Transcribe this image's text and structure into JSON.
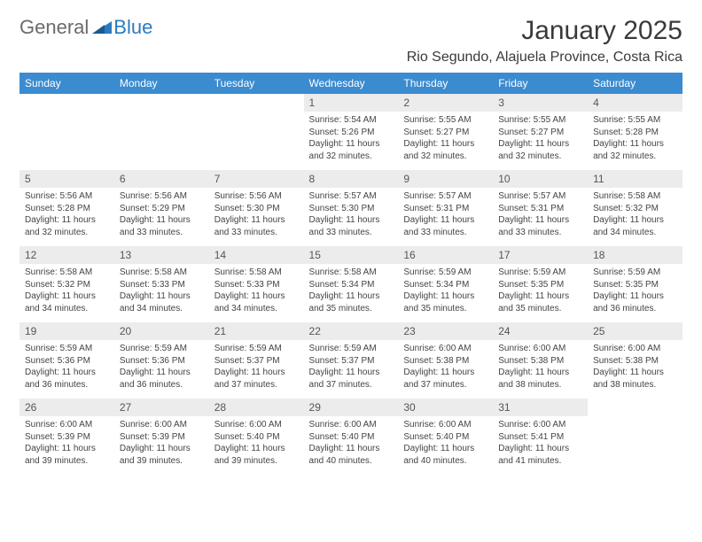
{
  "logo": {
    "text_general": "General",
    "text_blue": "Blue"
  },
  "header": {
    "month_title": "January 2025",
    "location": "Rio Segundo, Alajuela Province, Costa Rica"
  },
  "calendar": {
    "day_headers": [
      "Sunday",
      "Monday",
      "Tuesday",
      "Wednesday",
      "Thursday",
      "Friday",
      "Saturday"
    ],
    "header_bg": "#3b8bd0",
    "header_fg": "#ffffff",
    "daynum_bg": "#ececec",
    "body_text_color": "#444444",
    "weeks": [
      [
        null,
        null,
        null,
        {
          "n": "1",
          "sr": "Sunrise: 5:54 AM",
          "ss": "Sunset: 5:26 PM",
          "dl": "Daylight: 11 hours and 32 minutes."
        },
        {
          "n": "2",
          "sr": "Sunrise: 5:55 AM",
          "ss": "Sunset: 5:27 PM",
          "dl": "Daylight: 11 hours and 32 minutes."
        },
        {
          "n": "3",
          "sr": "Sunrise: 5:55 AM",
          "ss": "Sunset: 5:27 PM",
          "dl": "Daylight: 11 hours and 32 minutes."
        },
        {
          "n": "4",
          "sr": "Sunrise: 5:55 AM",
          "ss": "Sunset: 5:28 PM",
          "dl": "Daylight: 11 hours and 32 minutes."
        }
      ],
      [
        {
          "n": "5",
          "sr": "Sunrise: 5:56 AM",
          "ss": "Sunset: 5:28 PM",
          "dl": "Daylight: 11 hours and 32 minutes."
        },
        {
          "n": "6",
          "sr": "Sunrise: 5:56 AM",
          "ss": "Sunset: 5:29 PM",
          "dl": "Daylight: 11 hours and 33 minutes."
        },
        {
          "n": "7",
          "sr": "Sunrise: 5:56 AM",
          "ss": "Sunset: 5:30 PM",
          "dl": "Daylight: 11 hours and 33 minutes."
        },
        {
          "n": "8",
          "sr": "Sunrise: 5:57 AM",
          "ss": "Sunset: 5:30 PM",
          "dl": "Daylight: 11 hours and 33 minutes."
        },
        {
          "n": "9",
          "sr": "Sunrise: 5:57 AM",
          "ss": "Sunset: 5:31 PM",
          "dl": "Daylight: 11 hours and 33 minutes."
        },
        {
          "n": "10",
          "sr": "Sunrise: 5:57 AM",
          "ss": "Sunset: 5:31 PM",
          "dl": "Daylight: 11 hours and 33 minutes."
        },
        {
          "n": "11",
          "sr": "Sunrise: 5:58 AM",
          "ss": "Sunset: 5:32 PM",
          "dl": "Daylight: 11 hours and 34 minutes."
        }
      ],
      [
        {
          "n": "12",
          "sr": "Sunrise: 5:58 AM",
          "ss": "Sunset: 5:32 PM",
          "dl": "Daylight: 11 hours and 34 minutes."
        },
        {
          "n": "13",
          "sr": "Sunrise: 5:58 AM",
          "ss": "Sunset: 5:33 PM",
          "dl": "Daylight: 11 hours and 34 minutes."
        },
        {
          "n": "14",
          "sr": "Sunrise: 5:58 AM",
          "ss": "Sunset: 5:33 PM",
          "dl": "Daylight: 11 hours and 34 minutes."
        },
        {
          "n": "15",
          "sr": "Sunrise: 5:58 AM",
          "ss": "Sunset: 5:34 PM",
          "dl": "Daylight: 11 hours and 35 minutes."
        },
        {
          "n": "16",
          "sr": "Sunrise: 5:59 AM",
          "ss": "Sunset: 5:34 PM",
          "dl": "Daylight: 11 hours and 35 minutes."
        },
        {
          "n": "17",
          "sr": "Sunrise: 5:59 AM",
          "ss": "Sunset: 5:35 PM",
          "dl": "Daylight: 11 hours and 35 minutes."
        },
        {
          "n": "18",
          "sr": "Sunrise: 5:59 AM",
          "ss": "Sunset: 5:35 PM",
          "dl": "Daylight: 11 hours and 36 minutes."
        }
      ],
      [
        {
          "n": "19",
          "sr": "Sunrise: 5:59 AM",
          "ss": "Sunset: 5:36 PM",
          "dl": "Daylight: 11 hours and 36 minutes."
        },
        {
          "n": "20",
          "sr": "Sunrise: 5:59 AM",
          "ss": "Sunset: 5:36 PM",
          "dl": "Daylight: 11 hours and 36 minutes."
        },
        {
          "n": "21",
          "sr": "Sunrise: 5:59 AM",
          "ss": "Sunset: 5:37 PM",
          "dl": "Daylight: 11 hours and 37 minutes."
        },
        {
          "n": "22",
          "sr": "Sunrise: 5:59 AM",
          "ss": "Sunset: 5:37 PM",
          "dl": "Daylight: 11 hours and 37 minutes."
        },
        {
          "n": "23",
          "sr": "Sunrise: 6:00 AM",
          "ss": "Sunset: 5:38 PM",
          "dl": "Daylight: 11 hours and 37 minutes."
        },
        {
          "n": "24",
          "sr": "Sunrise: 6:00 AM",
          "ss": "Sunset: 5:38 PM",
          "dl": "Daylight: 11 hours and 38 minutes."
        },
        {
          "n": "25",
          "sr": "Sunrise: 6:00 AM",
          "ss": "Sunset: 5:38 PM",
          "dl": "Daylight: 11 hours and 38 minutes."
        }
      ],
      [
        {
          "n": "26",
          "sr": "Sunrise: 6:00 AM",
          "ss": "Sunset: 5:39 PM",
          "dl": "Daylight: 11 hours and 39 minutes."
        },
        {
          "n": "27",
          "sr": "Sunrise: 6:00 AM",
          "ss": "Sunset: 5:39 PM",
          "dl": "Daylight: 11 hours and 39 minutes."
        },
        {
          "n": "28",
          "sr": "Sunrise: 6:00 AM",
          "ss": "Sunset: 5:40 PM",
          "dl": "Daylight: 11 hours and 39 minutes."
        },
        {
          "n": "29",
          "sr": "Sunrise: 6:00 AM",
          "ss": "Sunset: 5:40 PM",
          "dl": "Daylight: 11 hours and 40 minutes."
        },
        {
          "n": "30",
          "sr": "Sunrise: 6:00 AM",
          "ss": "Sunset: 5:40 PM",
          "dl": "Daylight: 11 hours and 40 minutes."
        },
        {
          "n": "31",
          "sr": "Sunrise: 6:00 AM",
          "ss": "Sunset: 5:41 PM",
          "dl": "Daylight: 11 hours and 41 minutes."
        },
        null
      ]
    ]
  }
}
